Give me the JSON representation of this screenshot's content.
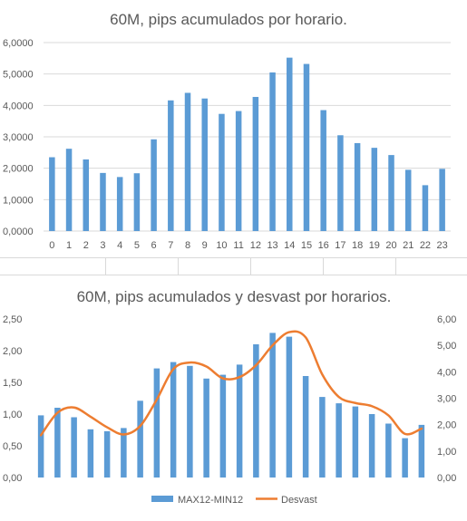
{
  "colors": {
    "bar": "#5B9BD5",
    "line": "#ED7D31",
    "grid": "#d9d9d9",
    "text": "#595959"
  },
  "chart_data": [
    {
      "type": "bar",
      "title": "60M, pips acumulados por horario.",
      "categories": [
        "0",
        "1",
        "2",
        "3",
        "4",
        "5",
        "6",
        "7",
        "8",
        "9",
        "10",
        "11",
        "12",
        "13",
        "14",
        "15",
        "16",
        "17",
        "18",
        "19",
        "20",
        "21",
        "22",
        "23"
      ],
      "values": [
        2.35,
        2.62,
        2.28,
        1.85,
        1.72,
        1.84,
        2.92,
        4.16,
        4.4,
        4.22,
        3.73,
        3.82,
        4.27,
        5.05,
        5.52,
        5.32,
        3.85,
        3.05,
        2.8,
        2.65,
        2.42,
        1.95,
        1.46,
        1.98
      ],
      "ylim": [
        0,
        6
      ],
      "yticks": [
        "0,0000",
        "1,0000",
        "2,0000",
        "3,0000",
        "4,0000",
        "5,0000",
        "6,0000"
      ],
      "grid": true
    },
    {
      "type": "bar+line",
      "title": "60M, pips acumulados y desvast por horarios.",
      "categories": [
        "0",
        "1",
        "2",
        "3",
        "4",
        "5",
        "6",
        "7",
        "8",
        "9",
        "10",
        "11",
        "12",
        "13",
        "14",
        "15",
        "16",
        "17",
        "18",
        "19",
        "20",
        "21",
        "22",
        "23"
      ],
      "series": [
        {
          "name": "MAX12-MIN12",
          "type": "bar",
          "axis": "left",
          "values": [
            0.98,
            1.1,
            0.95,
            0.76,
            0.73,
            0.78,
            1.21,
            1.72,
            1.82,
            1.76,
            1.56,
            1.62,
            1.78,
            2.1,
            2.28,
            2.22,
            1.6,
            1.27,
            1.17,
            1.12,
            1.0,
            0.85,
            0.62,
            0.83
          ]
        },
        {
          "name": "Desvast",
          "type": "line",
          "axis": "right",
          "values": [
            1.6,
            2.45,
            2.65,
            2.3,
            1.9,
            1.63,
            1.95,
            2.95,
            4.1,
            4.35,
            4.2,
            3.75,
            3.8,
            4.25,
            5.0,
            5.5,
            5.3,
            3.9,
            3.05,
            2.82,
            2.7,
            2.35,
            1.65,
            1.85
          ]
        }
      ],
      "ylim_left": [
        0,
        2.5
      ],
      "yticks_left": [
        "0,00",
        "0,50",
        "1,00",
        "1,50",
        "2,00",
        "2,50"
      ],
      "ylim_right": [
        0,
        6
      ],
      "yticks_right": [
        "0,00",
        "1,00",
        "2,00",
        "3,00",
        "4,00",
        "5,00",
        "6,00"
      ],
      "grid": false,
      "legend": "bottom"
    }
  ]
}
